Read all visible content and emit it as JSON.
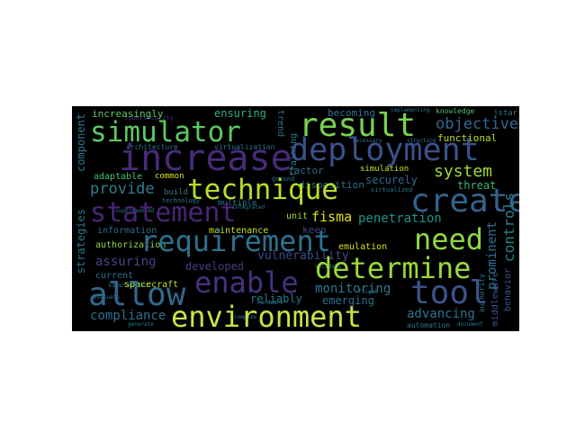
{
  "wordcloud": {
    "background": "#000000",
    "words": [
      {
        "id": "environment",
        "text": "environment",
        "color": "#c8e34a"
      },
      {
        "id": "simulator",
        "text": "simulator",
        "color": "#5cc863"
      },
      {
        "id": "result",
        "text": "result",
        "color": "#7ad151"
      },
      {
        "id": "increase",
        "text": "increase",
        "color": "#472b7a"
      },
      {
        "id": "deployment",
        "text": "deployment",
        "color": "#3b518b"
      },
      {
        "id": "technique",
        "text": "technique",
        "color": "#b8de29"
      },
      {
        "id": "create",
        "text": "create",
        "color": "#33638d"
      },
      {
        "id": "statement",
        "text": "statement",
        "color": "#482575"
      },
      {
        "id": "requirement",
        "text": "requirement",
        "color": "#2d708e"
      },
      {
        "id": "need",
        "text": "need",
        "color": "#8fd744"
      },
      {
        "id": "determine",
        "text": "determine",
        "color": "#9bd93c"
      },
      {
        "id": "allow",
        "text": "allow",
        "color": "#31688e"
      },
      {
        "id": "enable",
        "text": "enable",
        "color": "#46327e"
      },
      {
        "id": "tool",
        "text": "tool",
        "color": "#3b528b"
      },
      {
        "id": "system",
        "text": "system",
        "color": "#a2da37"
      },
      {
        "id": "provide",
        "text": "provide",
        "color": "#2c7f8e"
      },
      {
        "id": "objective",
        "text": "objective",
        "color": "#31688e"
      },
      {
        "id": "penetration",
        "text": "penetration",
        "color": "#21918c"
      },
      {
        "id": "fisma",
        "text": "fisma",
        "color": "#dde318"
      },
      {
        "id": "controls",
        "text": "controls",
        "color": "#26828e"
      },
      {
        "id": "monitoring",
        "text": "monitoring",
        "color": "#2a788e"
      },
      {
        "id": "advancing",
        "text": "advancing",
        "color": "#2c728e"
      },
      {
        "id": "compliance",
        "text": "compliance",
        "color": "#2d708e"
      },
      {
        "id": "prominent",
        "text": "prominent",
        "color": "#2c728e"
      },
      {
        "id": "vulnerability",
        "text": "vulnerability",
        "color": "#3e4a89"
      },
      {
        "id": "assuring",
        "text": "assuring",
        "color": "#414487"
      },
      {
        "id": "developed",
        "text": "developed",
        "color": "#433e85"
      },
      {
        "id": "reliably",
        "text": "reliably",
        "color": "#2a788e"
      },
      {
        "id": "emerging",
        "text": "emerging",
        "color": "#2e6e8e"
      },
      {
        "id": "securely",
        "text": "securely",
        "color": "#2f6b8e"
      },
      {
        "id": "threat",
        "text": "threat",
        "color": "#35b779"
      },
      {
        "id": "increasingly",
        "text": "increasingly",
        "color": "#5ec962"
      },
      {
        "id": "ensuring",
        "text": "ensuring",
        "color": "#2db27d"
      },
      {
        "id": "becoming",
        "text": "becoming",
        "color": "#2c728e"
      },
      {
        "id": "knowledge",
        "text": "knowledge",
        "color": "#4ac16d"
      },
      {
        "id": "functional",
        "text": "functional",
        "color": "#b5de2b"
      },
      {
        "id": "component",
        "text": "component",
        "color": "#2a768e"
      },
      {
        "id": "strategies",
        "text": "strategies",
        "color": "#2a788e"
      },
      {
        "id": "middleware",
        "text": "middleware",
        "color": "#39558c"
      },
      {
        "id": "behavior",
        "text": "behavior",
        "color": "#365c8d"
      },
      {
        "id": "maintenance",
        "text": "maintenance",
        "color": "#cae11f"
      },
      {
        "id": "emulation",
        "text": "emulation",
        "color": "#d8e219"
      },
      {
        "id": "information",
        "text": "information",
        "color": "#2e6e8e"
      },
      {
        "id": "authorization",
        "text": "authorization",
        "color": "#8bd646"
      },
      {
        "id": "current",
        "text": "current",
        "color": "#2b748e"
      },
      {
        "id": "spacecraft",
        "text": "spacecraft",
        "color": "#c0df25"
      },
      {
        "id": "adaptable",
        "text": "adaptable",
        "color": "#46c06f"
      },
      {
        "id": "common",
        "text": "common",
        "color": "#dde318"
      },
      {
        "id": "simulation",
        "text": "simulation",
        "color": "#d2e21b"
      },
      {
        "id": "factor",
        "text": "factor",
        "color": "#2f6c8e"
      },
      {
        "id": "disposition",
        "text": "disposition",
        "color": "#2e6f8e"
      },
      {
        "id": "architecture",
        "text": "architecture",
        "color": "#2b758e"
      },
      {
        "id": "virtualization",
        "text": "virtualization",
        "color": "#2a788e"
      },
      {
        "id": "trend",
        "text": "trend",
        "color": "#2a788e"
      },
      {
        "id": "training",
        "text": "training",
        "color": "#2a788e"
      },
      {
        "id": "build",
        "text": "build",
        "color": "#2a788e"
      },
      {
        "id": "multiple",
        "text": "multiple",
        "color": "#2a788e"
      },
      {
        "id": "keep",
        "text": "keep",
        "color": "#414487"
      },
      {
        "id": "unit",
        "text": "unit",
        "color": "#a5db36"
      },
      {
        "id": "automation",
        "text": "automation",
        "color": "#2a788e"
      },
      {
        "id": "jstar",
        "text": "jstar",
        "color": "#2a788e"
      },
      {
        "id": "cybersecurity",
        "text": "cybersecurity",
        "color": "#46327e"
      },
      {
        "id": "virtualized",
        "text": "virtualized",
        "color": "#2a788e"
      },
      {
        "id": "authority",
        "text": "authority",
        "color": "#2a788e"
      },
      {
        "id": "technology",
        "text": "technology",
        "color": "#2a788e"
      },
      {
        "id": "simulations",
        "text": "simulations",
        "color": "#2a788e"
      },
      {
        "id": "ground",
        "text": "ground",
        "color": "#2a788e"
      },
      {
        "id": "implementing",
        "text": "implementing",
        "color": "#2a788e"
      },
      {
        "id": "evaluate",
        "text": "evaluate",
        "color": "#2a788e"
      },
      {
        "id": "document",
        "text": "document",
        "color": "#2a788e"
      },
      {
        "id": "validate",
        "text": "validate",
        "color": "#2a788e"
      },
      {
        "id": "structure",
        "text": "structure",
        "color": "#2a788e"
      },
      {
        "id": "necessary",
        "text": "necessary",
        "color": "#2a788e"
      },
      {
        "id": "integrated",
        "text": "integrated",
        "color": "#2a788e"
      },
      {
        "id": "supplemented",
        "text": "supplemented",
        "color": "#2a788e"
      },
      {
        "id": "generate",
        "text": "generate",
        "color": "#2a788e"
      },
      {
        "id": "complex",
        "text": "complex",
        "color": "#2a788e"
      },
      {
        "id": "hardware",
        "text": "hardware",
        "color": "#2a788e"
      },
      {
        "id": "flight",
        "text": "flight",
        "color": "#2a788e"
      }
    ]
  }
}
